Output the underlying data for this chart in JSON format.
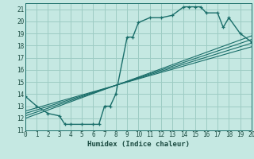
{
  "title": "",
  "xlabel": "Humidex (Indice chaleur)",
  "xlim": [
    0,
    20
  ],
  "ylim": [
    11,
    21.5
  ],
  "xticks": [
    0,
    1,
    2,
    3,
    4,
    5,
    6,
    7,
    8,
    9,
    10,
    11,
    12,
    13,
    14,
    15,
    16,
    17,
    18,
    19,
    20
  ],
  "yticks": [
    11,
    12,
    13,
    14,
    15,
    16,
    17,
    18,
    19,
    20,
    21
  ],
  "bg_color": "#c5e8e2",
  "grid_color": "#9dccc4",
  "line_color": "#1a6e6a",
  "main_curve": {
    "x": [
      0,
      1,
      2,
      3,
      3.5,
      4,
      5,
      6,
      6.5,
      7,
      7.5,
      8,
      9,
      9.5,
      10,
      11,
      12,
      13,
      14,
      14.5,
      15,
      15.5,
      16,
      17,
      17.5,
      18,
      19,
      20
    ],
    "y": [
      13.8,
      13.0,
      12.4,
      12.2,
      11.5,
      11.5,
      11.5,
      11.5,
      11.5,
      13.0,
      13.0,
      14.0,
      18.7,
      18.7,
      19.9,
      20.3,
      20.3,
      20.5,
      21.2,
      21.2,
      21.2,
      21.2,
      20.7,
      20.7,
      19.5,
      20.3,
      19.0,
      18.3
    ]
  },
  "linear_lines": [
    {
      "x": [
        0,
        20
      ],
      "y": [
        12.0,
        18.8
      ]
    },
    {
      "x": [
        0,
        20
      ],
      "y": [
        12.2,
        18.5
      ]
    },
    {
      "x": [
        0,
        20
      ],
      "y": [
        12.4,
        18.2
      ]
    },
    {
      "x": [
        0,
        20
      ],
      "y": [
        12.6,
        17.9
      ]
    }
  ]
}
